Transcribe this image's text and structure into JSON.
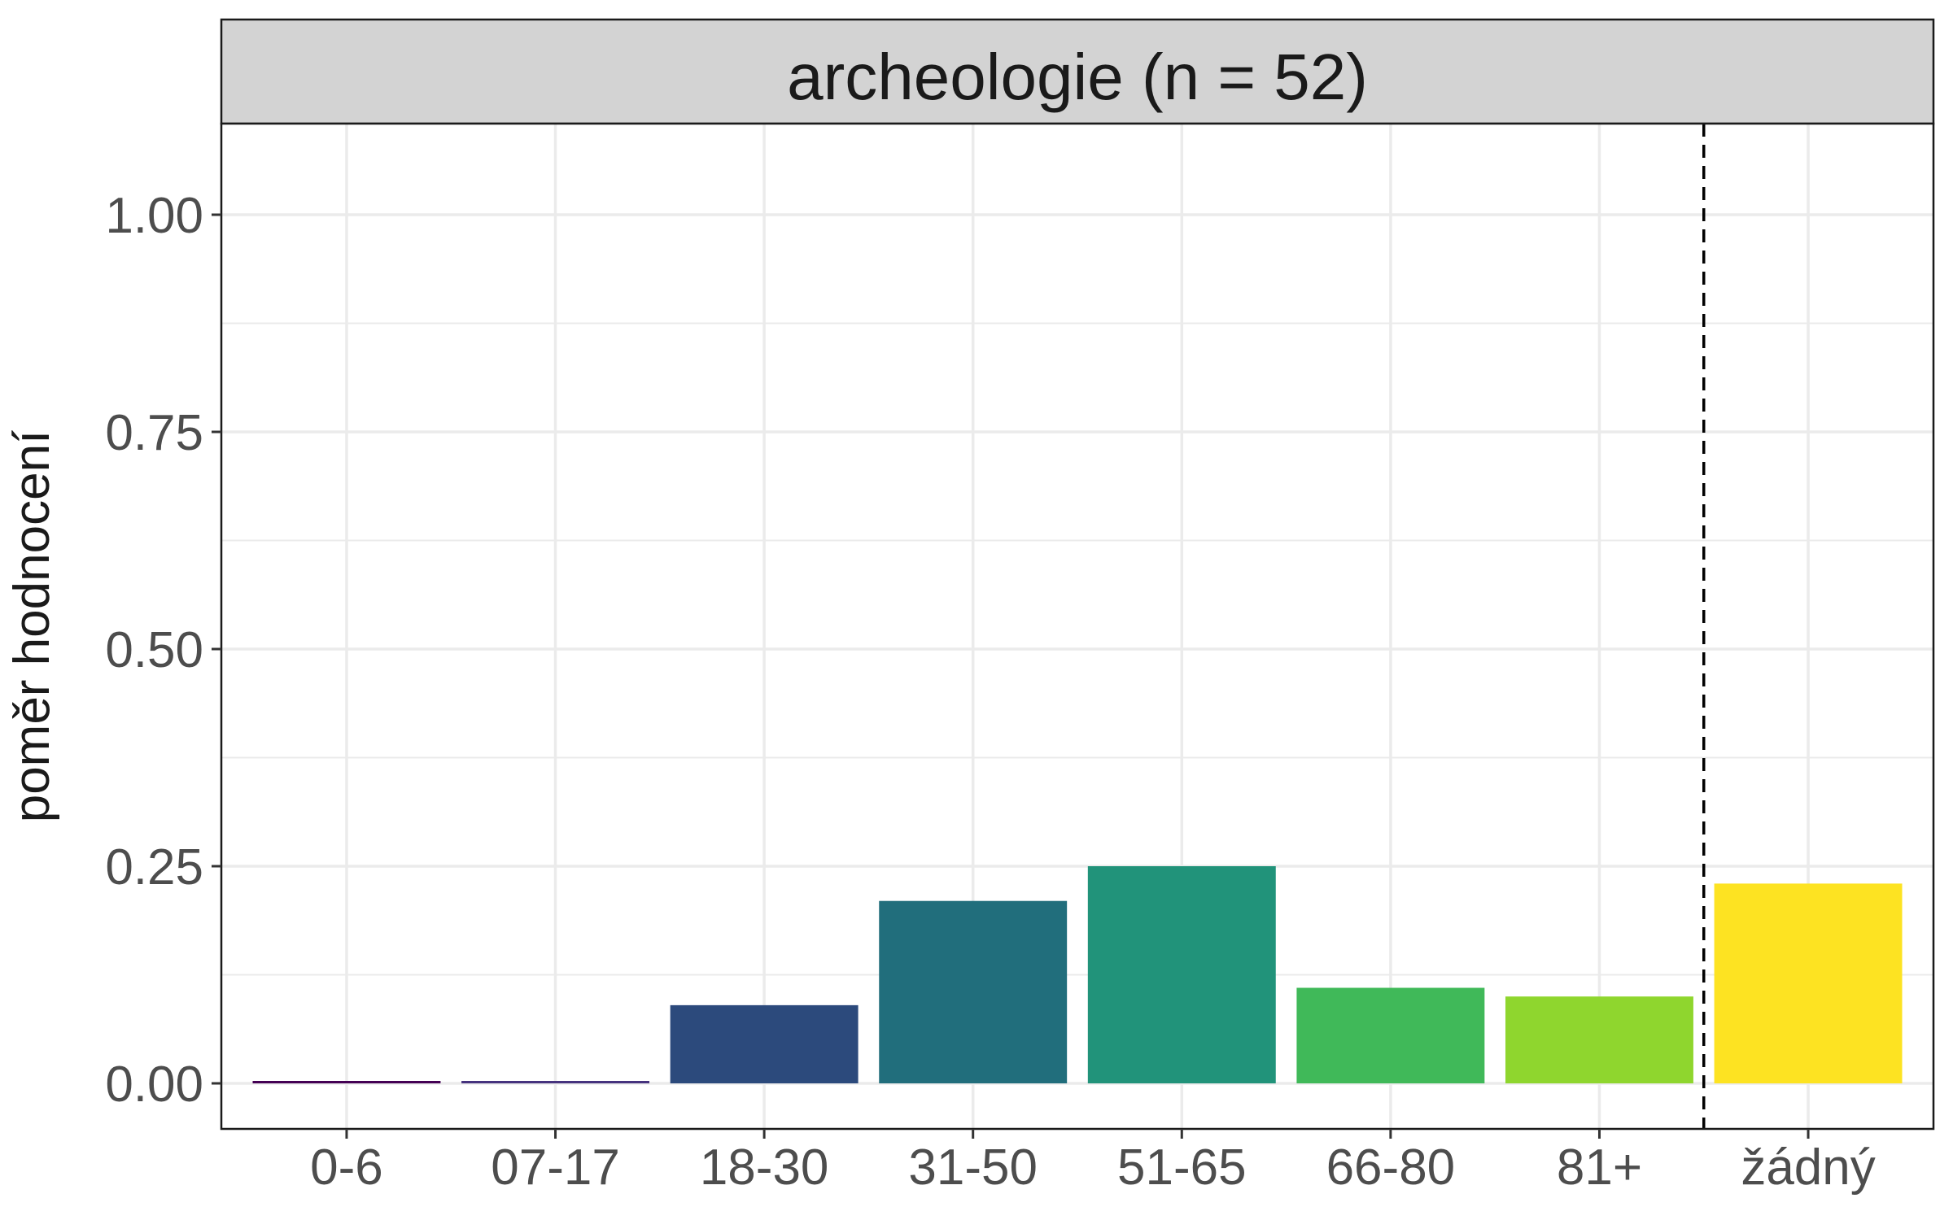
{
  "chart_data": {
    "type": "bar",
    "title": "archeologie (n = 52)",
    "xlabel": "",
    "ylabel": "poměr hodnocení",
    "categories": [
      "0-6",
      "07-17",
      "18-30",
      "31-50",
      "51-65",
      "66-80",
      "81+",
      "žádný"
    ],
    "values": [
      0.0,
      0.0,
      0.09,
      0.21,
      0.25,
      0.11,
      0.1,
      0.23
    ],
    "colors": [
      "#440154",
      "#46337E",
      "#2C4A7C",
      "#216E7C",
      "#21937A",
      "#40B959",
      "#8FD62E",
      "#FDE322"
    ],
    "ylim": [
      0,
      1.1
    ],
    "yticks": [
      "0.00",
      "0.25",
      "0.50",
      "0.75",
      "1.00"
    ],
    "ytick_values": [
      0,
      0.25,
      0.5,
      0.75,
      1.0
    ],
    "grid": true,
    "dashed_separator_between": [
      "81+",
      "žádný"
    ]
  }
}
